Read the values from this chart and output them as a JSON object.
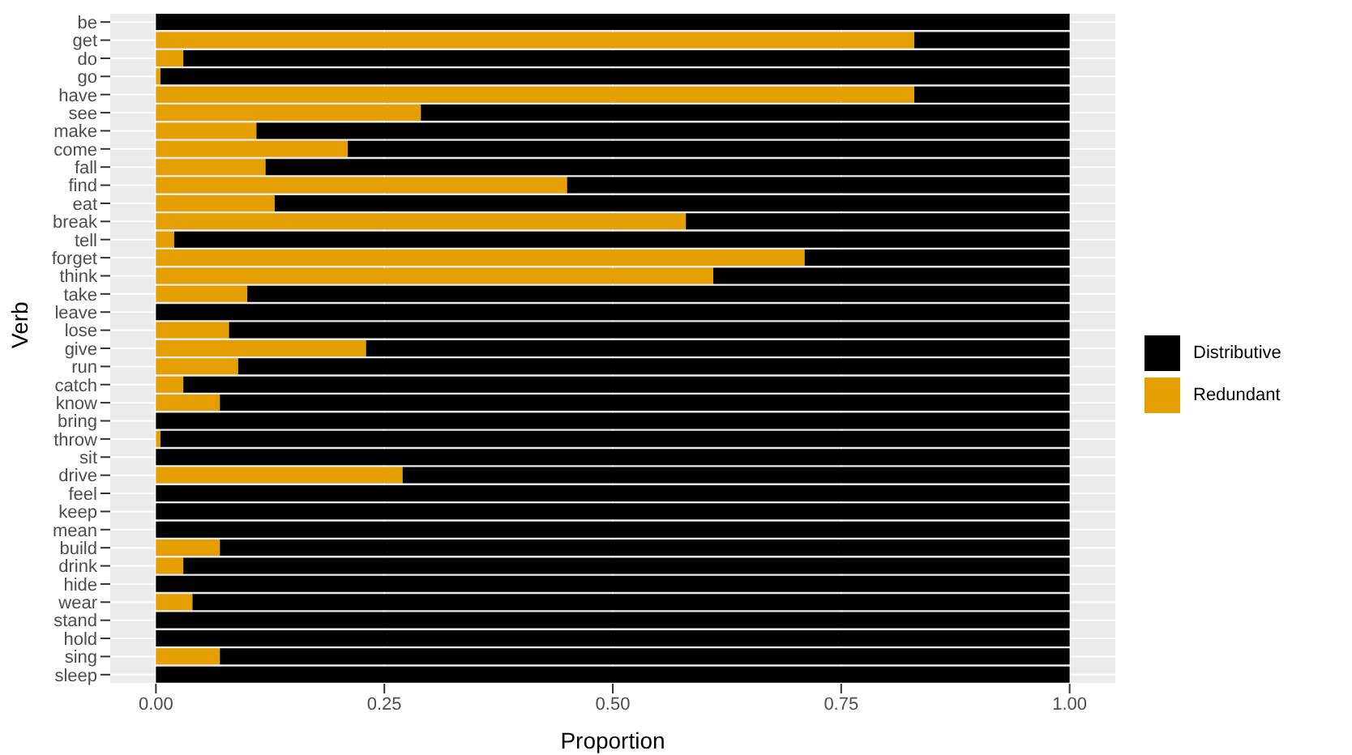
{
  "chart_data": {
    "type": "bar",
    "orientation": "horizontal",
    "stacked": true,
    "xlabel": "Proportion",
    "ylabel": "Verb",
    "categories": [
      "be",
      "get",
      "do",
      "go",
      "have",
      "see",
      "make",
      "come",
      "fall",
      "find",
      "eat",
      "break",
      "tell",
      "forget",
      "think",
      "take",
      "leave",
      "lose",
      "give",
      "run",
      "catch",
      "know",
      "bring",
      "throw",
      "sit",
      "drive",
      "feel",
      "keep",
      "mean",
      "build",
      "drink",
      "hide",
      "wear",
      "stand",
      "hold",
      "sing",
      "sleep"
    ],
    "series": [
      {
        "name": "Redundant",
        "color": "#e69f00",
        "values": [
          0,
          0.83,
          0.03,
          0.005,
          0.83,
          0.29,
          0.11,
          0.21,
          0.12,
          0.45,
          0.13,
          0.58,
          0.02,
          0.71,
          0.61,
          0.1,
          0,
          0.08,
          0.23,
          0.09,
          0.03,
          0.07,
          0,
          0.005,
          0,
          0.27,
          0,
          0,
          0,
          0.07,
          0.03,
          0,
          0.04,
          0,
          0,
          0.07,
          0
        ]
      },
      {
        "name": "Distributive",
        "color": "#000000",
        "values": [
          1,
          0.17,
          0.97,
          0.995,
          0.17,
          0.71,
          0.89,
          0.79,
          0.88,
          0.55,
          0.87,
          0.42,
          0.98,
          0.29,
          0.39,
          0.9,
          1,
          0.92,
          0.77,
          0.91,
          0.97,
          0.93,
          1,
          0.995,
          1,
          0.73,
          1,
          1,
          1,
          0.93,
          0.97,
          1,
          0.96,
          1,
          1,
          0.93,
          1
        ]
      }
    ],
    "xlim": [
      -0.05,
      1.05
    ],
    "xticks": [
      {
        "value": 0,
        "label": "0.00"
      },
      {
        "value": 0.25,
        "label": "0.25"
      },
      {
        "value": 0.5,
        "label": "0.50"
      },
      {
        "value": 0.75,
        "label": "0.75"
      },
      {
        "value": 1,
        "label": "1.00"
      }
    ],
    "grid": true,
    "legend": "right"
  }
}
